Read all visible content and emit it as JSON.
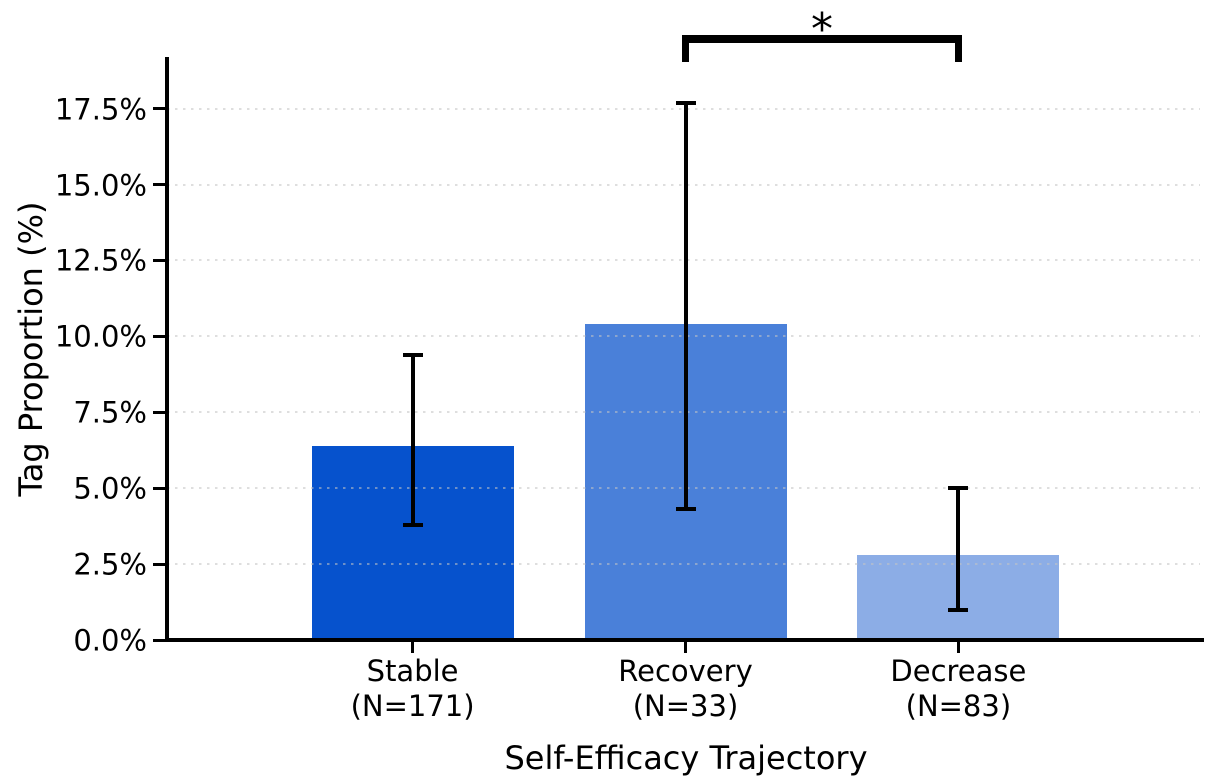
{
  "chart_data": {
    "type": "bar",
    "title": "",
    "xlabel": "Self-Efficacy Trajectory",
    "ylabel": "Tag Proportion (%)",
    "categories": [
      {
        "label": "Stable",
        "n_label": "(N=171)"
      },
      {
        "label": "Recovery",
        "n_label": "(N=33)"
      },
      {
        "label": "Decrease",
        "n_label": "(N=83)"
      }
    ],
    "values_pct": [
      6.4,
      10.4,
      2.8
    ],
    "ci_low_pct": [
      3.8,
      4.3,
      1.0
    ],
    "ci_high_pct": [
      9.4,
      17.7,
      5.0
    ],
    "bar_colors": [
      "#0652cd",
      "#4a80d9",
      "#8cade6"
    ],
    "error_bar_color": "#000000",
    "axis_color": "#000000",
    "text_color": "#000000",
    "ytick_values": [
      0,
      2.5,
      5,
      7.5,
      10,
      12.5,
      15,
      17.5
    ],
    "ytick_labels": [
      "0.0%",
      "2.5%",
      "5.0%",
      "7.5%",
      "10.0%",
      "12.5%",
      "15.0%",
      "17.5%"
    ],
    "ylim": [
      0,
      19.2
    ],
    "grid": {
      "horizontal": true,
      "style": "dotted",
      "color": "#c4c4c4",
      "over_bars": true
    },
    "legend": "none",
    "significance": {
      "between": [
        1,
        2
      ],
      "label": "*"
    }
  }
}
